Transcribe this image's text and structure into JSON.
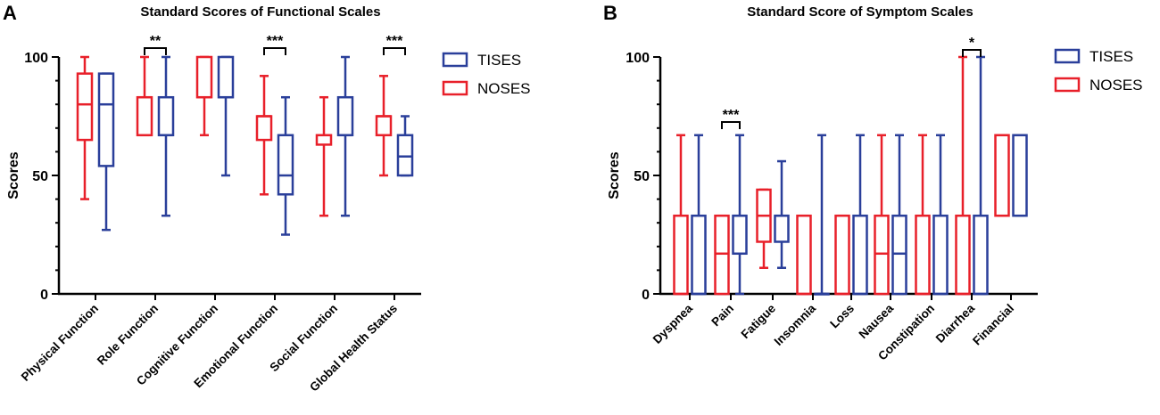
{
  "colors": {
    "tises": "#2a3f9a",
    "noses": "#e8202a",
    "axis": "#000000"
  },
  "chart_data": [
    {
      "panel": "A",
      "type": "boxplot",
      "title": "Standard Scores of Functional Scales",
      "ylabel": "Scores",
      "ylim": [
        0,
        100
      ],
      "yticks": [
        "0",
        "50",
        "100"
      ],
      "categories": [
        "Physical Function",
        "Role Function",
        "Cognitive Function",
        "Emotional Function",
        "Social Function",
        "Global Health Status"
      ],
      "legend": [
        "TISES",
        "NOSES"
      ],
      "series": [
        {
          "name": "NOSES",
          "boxes": [
            {
              "min": 40,
              "q1": 65,
              "median": 80,
              "q3": 93,
              "max": 100
            },
            {
              "min": 67,
              "q1": 67,
              "median": 83,
              "q3": 83,
              "max": 100
            },
            {
              "min": 67,
              "q1": 83,
              "median": 83,
              "q3": 100,
              "max": 100
            },
            {
              "min": 42,
              "q1": 65,
              "median": 75,
              "q3": 75,
              "max": 92
            },
            {
              "min": 33,
              "q1": 63,
              "median": 67,
              "q3": 67,
              "max": 83
            },
            {
              "min": 50,
              "q1": 67,
              "median": 75,
              "q3": 75,
              "max": 92
            }
          ]
        },
        {
          "name": "TISES",
          "boxes": [
            {
              "min": 27,
              "q1": 54,
              "median": 80,
              "q3": 93,
              "max": 93
            },
            {
              "min": 33,
              "q1": 67,
              "median": 67,
              "q3": 83,
              "max": 100
            },
            {
              "min": 50,
              "q1": 83,
              "median": 83,
              "q3": 100,
              "max": 100
            },
            {
              "min": 25,
              "q1": 42,
              "median": 50,
              "q3": 67,
              "max": 83
            },
            {
              "min": 33,
              "q1": 67,
              "median": 67,
              "q3": 83,
              "max": 100
            },
            {
              "min": 50,
              "q1": 50,
              "median": 58,
              "q3": 67,
              "max": 75
            }
          ]
        }
      ],
      "significance": [
        {
          "category": 1,
          "label": "**"
        },
        {
          "category": 3,
          "label": "***"
        },
        {
          "category": 5,
          "label": "***"
        }
      ]
    },
    {
      "panel": "B",
      "type": "boxplot",
      "title": "Standard Score of Symptom Scales",
      "ylabel": "Scores",
      "ylim": [
        0,
        100
      ],
      "yticks": [
        "0",
        "50",
        "100"
      ],
      "categories": [
        "Dyspnea",
        "Pain",
        "Fatigue",
        "Insomnia",
        "Loss",
        "Nausea",
        "Constipation",
        "Diarrhea",
        "Financial"
      ],
      "legend": [
        "TISES",
        "NOSES"
      ],
      "series": [
        {
          "name": "NOSES",
          "boxes": [
            {
              "min": 0,
              "q1": 0,
              "median": 0,
              "q3": 33,
              "max": 67
            },
            {
              "min": 0,
              "q1": 0,
              "median": 17,
              "q3": 33,
              "max": 33
            },
            {
              "min": 11,
              "q1": 22,
              "median": 33,
              "q3": 44,
              "max": 44
            },
            {
              "min": 0,
              "q1": 0,
              "median": 0,
              "q3": 33,
              "max": 33
            },
            {
              "min": 0,
              "q1": 0,
              "median": 0,
              "q3": 33,
              "max": 33
            },
            {
              "min": 0,
              "q1": 0,
              "median": 17,
              "q3": 33,
              "max": 67
            },
            {
              "min": 0,
              "q1": 0,
              "median": 0,
              "q3": 33,
              "max": 67
            },
            {
              "min": 0,
              "q1": 0,
              "median": 0,
              "q3": 33,
              "max": 100
            },
            {
              "min": 33,
              "q1": 33,
              "median": 67,
              "q3": 67,
              "max": 67
            }
          ]
        },
        {
          "name": "TISES",
          "boxes": [
            {
              "min": 0,
              "q1": 0,
              "median": 0,
              "q3": 33,
              "max": 67
            },
            {
              "min": 0,
              "q1": 17,
              "median": 33,
              "q3": 33,
              "max": 67
            },
            {
              "min": 11,
              "q1": 22,
              "median": 33,
              "q3": 33,
              "max": 56
            },
            {
              "min": 0,
              "q1": 0,
              "median": 0,
              "q3": 0,
              "max": 67
            },
            {
              "min": 0,
              "q1": 0,
              "median": 0,
              "q3": 33,
              "max": 67
            },
            {
              "min": 0,
              "q1": 0,
              "median": 17,
              "q3": 33,
              "max": 67
            },
            {
              "min": 0,
              "q1": 0,
              "median": 0,
              "q3": 33,
              "max": 67
            },
            {
              "min": 0,
              "q1": 0,
              "median": 0,
              "q3": 33,
              "max": 100
            },
            {
              "min": 33,
              "q1": 33,
              "median": 67,
              "q3": 67,
              "max": 67
            }
          ]
        }
      ],
      "significance": [
        {
          "category": 1,
          "label": "***"
        },
        {
          "category": 7,
          "label": "*"
        }
      ]
    }
  ]
}
